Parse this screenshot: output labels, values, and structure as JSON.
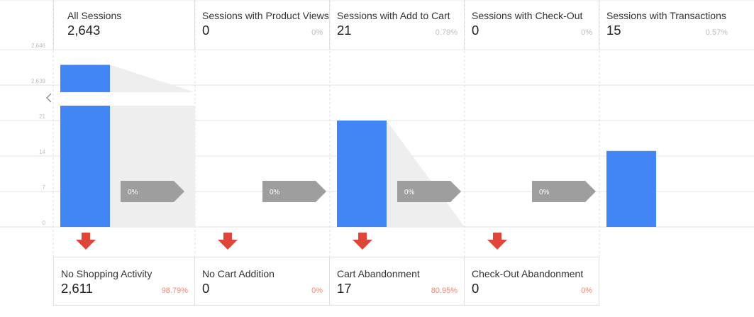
{
  "chart_data": {
    "type": "bar",
    "y_ticks_upper": [
      "2,646",
      "2,639"
    ],
    "y_ticks_lower": [
      "21",
      "14",
      "7",
      "0"
    ],
    "axis_break": true,
    "grid": true,
    "steps": [
      {
        "label": "All Sessions",
        "value_text": "2,643",
        "value": 2643,
        "pct": ""
      },
      {
        "label": "Sessions with Product Views",
        "value_text": "0",
        "value": 0,
        "pct": "0%"
      },
      {
        "label": "Sessions with Add to Cart",
        "value_text": "21",
        "value": 21,
        "pct": "0.79%"
      },
      {
        "label": "Sessions with Check-Out",
        "value_text": "0",
        "value": 0,
        "pct": "0%"
      },
      {
        "label": "Sessions with Transactions",
        "value_text": "15",
        "value": 15,
        "pct": "0.57%"
      }
    ],
    "continuation": [
      "0%",
      "0%",
      "0%",
      "0%"
    ],
    "abandonment": [
      {
        "label": "No Shopping Activity",
        "value_text": "2,611",
        "value": 2611,
        "pct": "98.79%"
      },
      {
        "label": "No Cart Addition",
        "value_text": "0",
        "value": 0,
        "pct": "0%"
      },
      {
        "label": "Cart Abandonment",
        "value_text": "17",
        "value": 17,
        "pct": "80.95%"
      },
      {
        "label": "Check-Out Abandonment",
        "value_text": "0",
        "value": 0,
        "pct": "0%"
      }
    ]
  },
  "colors": {
    "bar": "#4285f4",
    "arrow_down": "#e0453a",
    "pill": "#9e9e9e",
    "shade": "#eeeeee",
    "grid": "#e6e6e6"
  }
}
